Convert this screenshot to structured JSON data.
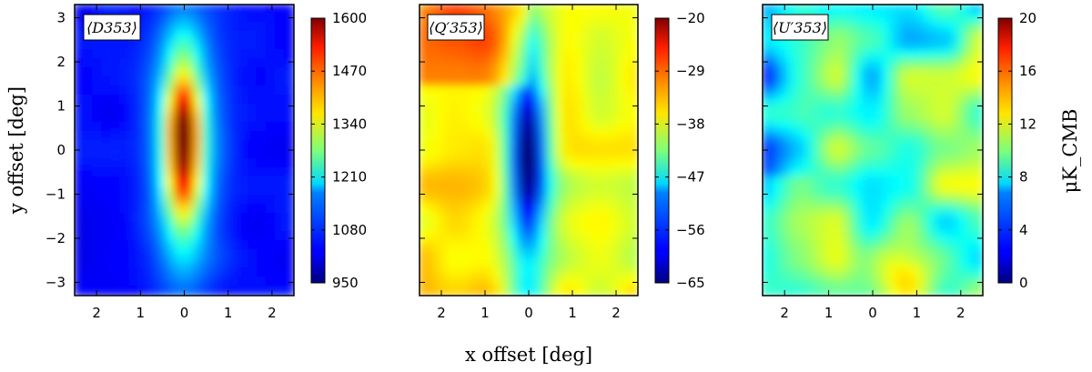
{
  "figure": {
    "xlabel": "x offset [deg]",
    "ylabel": "y offset [deg]",
    "colorbar_unit": "μK_CMB"
  },
  "chart_data": [
    {
      "type": "heatmap",
      "panel_label": "⟨D353⟩",
      "xticks": [
        "2",
        "1",
        "0",
        "1",
        "2"
      ],
      "xtick_values": [
        -2,
        -1,
        0,
        1,
        2
      ],
      "yticks": [
        "−3",
        "−2",
        "−1",
        "0",
        "1",
        "2",
        "3"
      ],
      "ytick_values": [
        -3,
        -2,
        -1,
        0,
        1,
        2,
        3
      ],
      "xlim": [
        -2.5,
        2.5
      ],
      "ylim": [
        -3.3,
        3.3
      ],
      "colorbar_ticks": [
        "950",
        "1080",
        "1210",
        "1340",
        "1470",
        "1600"
      ],
      "colorbar_range": [
        950,
        1600
      ],
      "colormap": "jet"
    },
    {
      "type": "heatmap",
      "panel_label": "⟨Q′353⟩",
      "xticks": [
        "2",
        "1",
        "0",
        "1",
        "2"
      ],
      "xtick_values": [
        -2,
        -1,
        0,
        1,
        2
      ],
      "xlim": [
        -2.5,
        2.5
      ],
      "ylim": [
        -3.3,
        3.3
      ],
      "colorbar_ticks": [
        "−65",
        "−56",
        "−47",
        "−38",
        "−29",
        "−20"
      ],
      "colorbar_range": [
        -65,
        -20
      ],
      "colormap": "jet"
    },
    {
      "type": "heatmap",
      "panel_label": "⟨U′353⟩",
      "xticks": [
        "2",
        "1",
        "0",
        "1",
        "2"
      ],
      "xtick_values": [
        -2,
        -1,
        0,
        1,
        2
      ],
      "xlim": [
        -2.5,
        2.5
      ],
      "ylim": [
        -3.3,
        3.3
      ],
      "colorbar_ticks": [
        "0",
        "4",
        "8",
        "12",
        "16",
        "20"
      ],
      "colorbar_range": [
        0,
        20
      ],
      "colormap": "jet"
    }
  ]
}
